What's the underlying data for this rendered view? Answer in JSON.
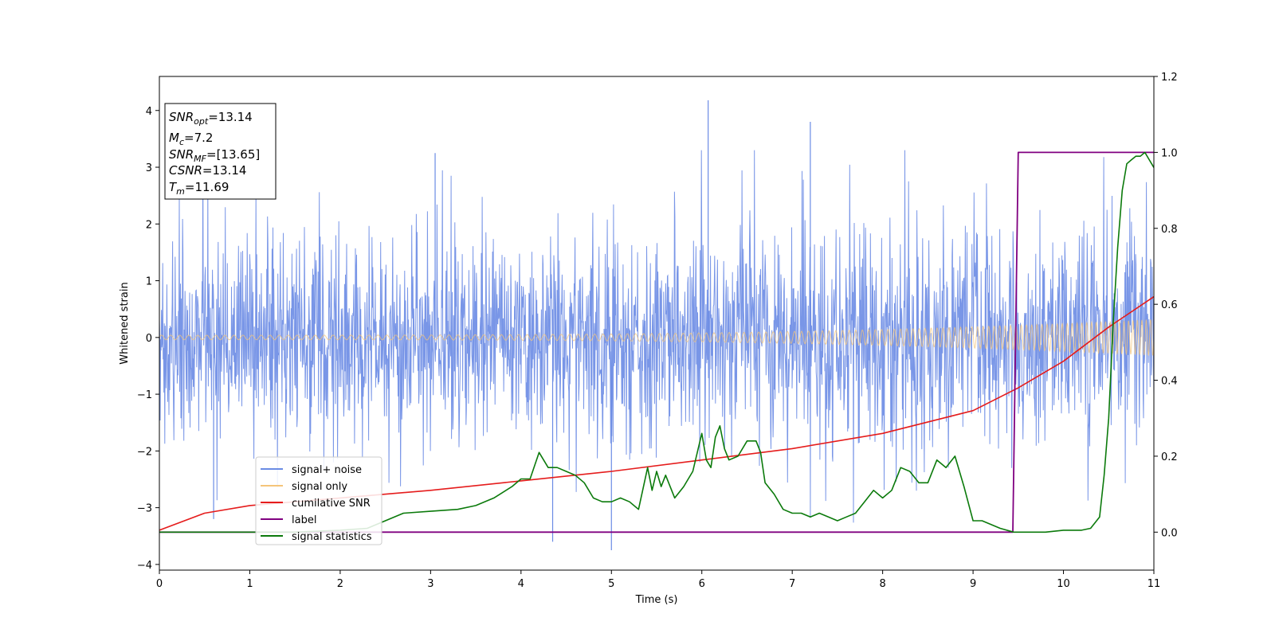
{
  "chart_data": {
    "type": "line",
    "xlabel": "Time (s)",
    "ylabel": "Whitened strain",
    "xlim": [
      0,
      11
    ],
    "ylim_left": [
      -4.1,
      4.6
    ],
    "ylim_right": [
      -0.1,
      1.2
    ],
    "x_ticks": [
      "0",
      "1",
      "2",
      "3",
      "4",
      "5",
      "6",
      "7",
      "8",
      "9",
      "10",
      "11"
    ],
    "y_ticks_left": [
      "−4",
      "−3",
      "−2",
      "−1",
      "0",
      "1",
      "2",
      "3",
      "4"
    ],
    "y_ticks_right": [
      "0.0",
      "0.2",
      "0.4",
      "0.6",
      "0.8",
      "1.0",
      "1.2"
    ],
    "annotation": {
      "snr_opt": {
        "name": "SNR",
        "sub": "opt",
        "value": "=13.14"
      },
      "mc": {
        "name": "M",
        "sub": "c",
        "value": "=7.2"
      },
      "snr_mf": {
        "name": "SNR",
        "sub": "MF",
        "value": "=[13.65]"
      },
      "csnr": {
        "name": "CSNR",
        "sub": "",
        "value": "=13.14"
      },
      "tm": {
        "name": "T",
        "sub": "m",
        "value": "=11.69"
      }
    },
    "legend": {
      "placement": "lower-left",
      "entries": [
        {
          "label": "signal+ noise",
          "color": "#6a8be4"
        },
        {
          "label": "signal only",
          "color": "#f5c57a"
        },
        {
          "label": "cumilative SNR",
          "color": "#e51c1c"
        },
        {
          "label": "label",
          "color": "#800080"
        },
        {
          "label": "signal statistics",
          "color": "#0b7a0b"
        }
      ]
    },
    "series": [
      {
        "name": "signal+ noise",
        "axis": "left",
        "color": "#6a8be4",
        "description_envelope": {
          "typical_amplitude": 1.6,
          "max": 4.18,
          "min": -3.75
        }
      },
      {
        "name": "signal only",
        "axis": "left",
        "color": "#f5c57a",
        "amplitude_start": 0.04,
        "amplitude_end": 0.32
      },
      {
        "name": "cumilative SNR",
        "axis": "right",
        "color": "#e51c1c",
        "x": [
          0,
          0.5,
          1,
          2,
          3,
          4,
          5,
          6,
          7,
          8,
          9,
          9.5,
          10,
          10.5,
          11
        ],
        "y": [
          0.005,
          0.05,
          0.07,
          0.09,
          0.11,
          0.135,
          0.16,
          0.19,
          0.22,
          0.26,
          0.32,
          0.38,
          0.45,
          0.54,
          0.62
        ]
      },
      {
        "name": "label",
        "axis": "right",
        "color": "#800080",
        "x": [
          0,
          9.44,
          9.5,
          11
        ],
        "y": [
          0,
          0,
          1,
          1
        ]
      },
      {
        "name": "signal statistics",
        "axis": "right",
        "color": "#0b7a0b",
        "x": [
          0,
          0.5,
          1,
          1.5,
          2,
          2.3,
          2.5,
          2.7,
          3,
          3.3,
          3.5,
          3.7,
          3.9,
          4.0,
          4.1,
          4.2,
          4.3,
          4.4,
          4.5,
          4.6,
          4.7,
          4.8,
          4.9,
          5.0,
          5.1,
          5.2,
          5.3,
          5.4,
          5.45,
          5.5,
          5.55,
          5.6,
          5.7,
          5.8,
          5.85,
          5.9,
          6.0,
          6.05,
          6.1,
          6.15,
          6.2,
          6.25,
          6.3,
          6.4,
          6.5,
          6.55,
          6.6,
          6.65,
          6.7,
          6.8,
          6.9,
          7.0,
          7.1,
          7.2,
          7.3,
          7.4,
          7.5,
          7.6,
          7.7,
          7.8,
          7.9,
          8.0,
          8.1,
          8.2,
          8.3,
          8.4,
          8.5,
          8.6,
          8.7,
          8.8,
          8.9,
          9.0,
          9.1,
          9.3,
          9.45,
          9.6,
          9.8,
          10.0,
          10.2,
          10.3,
          10.4,
          10.45,
          10.5,
          10.55,
          10.6,
          10.65,
          10.7,
          10.75,
          10.8,
          10.85,
          10.9,
          11.0
        ],
        "y": [
          0.0,
          0.0,
          0.0,
          0.0,
          0.005,
          0.01,
          0.03,
          0.05,
          0.055,
          0.06,
          0.07,
          0.09,
          0.12,
          0.14,
          0.14,
          0.21,
          0.17,
          0.17,
          0.16,
          0.15,
          0.13,
          0.09,
          0.08,
          0.08,
          0.09,
          0.08,
          0.06,
          0.17,
          0.11,
          0.16,
          0.12,
          0.15,
          0.09,
          0.12,
          0.14,
          0.16,
          0.26,
          0.19,
          0.17,
          0.25,
          0.28,
          0.22,
          0.19,
          0.2,
          0.24,
          0.24,
          0.24,
          0.21,
          0.13,
          0.1,
          0.06,
          0.05,
          0.05,
          0.04,
          0.05,
          0.04,
          0.03,
          0.04,
          0.05,
          0.08,
          0.11,
          0.09,
          0.11,
          0.17,
          0.16,
          0.13,
          0.13,
          0.19,
          0.17,
          0.2,
          0.12,
          0.03,
          0.03,
          0.01,
          0.0,
          0.0,
          0.0,
          0.005,
          0.005,
          0.01,
          0.04,
          0.15,
          0.3,
          0.55,
          0.75,
          0.9,
          0.97,
          0.98,
          0.99,
          0.99,
          1.0,
          0.96
        ]
      }
    ]
  }
}
